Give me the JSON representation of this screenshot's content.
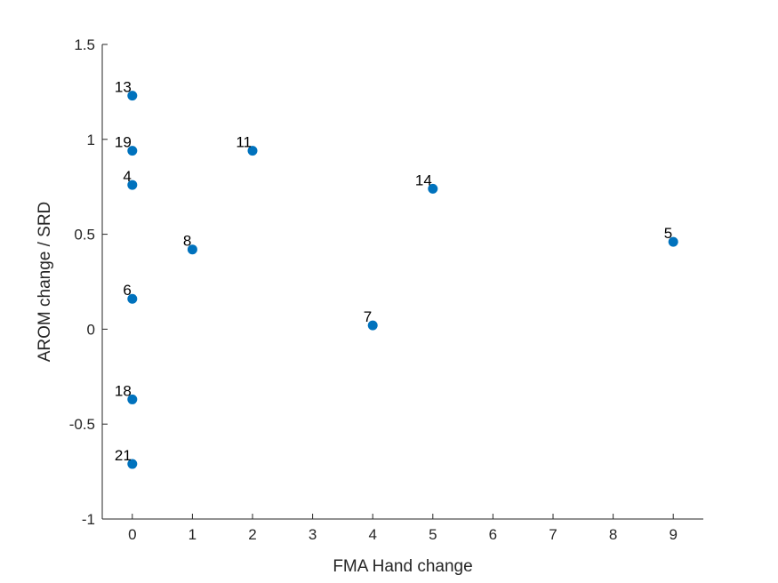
{
  "chart_data": {
    "type": "scatter",
    "title": "",
    "xlabel": "FMA Hand change",
    "ylabel": "AROM change / SRD",
    "xlim": [
      -0.5,
      9.5
    ],
    "ylim": [
      -1,
      1.5
    ],
    "x_ticks": [
      {
        "value": 0,
        "label": "0"
      },
      {
        "value": 1,
        "label": "1"
      },
      {
        "value": 2,
        "label": "2"
      },
      {
        "value": 3,
        "label": "3"
      },
      {
        "value": 4,
        "label": "4"
      },
      {
        "value": 5,
        "label": "5"
      },
      {
        "value": 6,
        "label": "6"
      },
      {
        "value": 7,
        "label": "7"
      },
      {
        "value": 8,
        "label": "8"
      },
      {
        "value": 9,
        "label": "9"
      }
    ],
    "y_ticks": [
      {
        "value": -1,
        "label": "-1"
      },
      {
        "value": -0.5,
        "label": "-0.5"
      },
      {
        "value": 0,
        "label": "0"
      },
      {
        "value": 0.5,
        "label": "0.5"
      },
      {
        "value": 1,
        "label": "1"
      },
      {
        "value": 1.5,
        "label": "1.5"
      }
    ],
    "grid": false,
    "marker_color": "#0072BD",
    "points": [
      {
        "label": "13",
        "x": 0,
        "y": 1.23
      },
      {
        "label": "19",
        "x": 0,
        "y": 0.94
      },
      {
        "label": "4",
        "x": 0,
        "y": 0.76
      },
      {
        "label": "6",
        "x": 0,
        "y": 0.16
      },
      {
        "label": "18",
        "x": 0,
        "y": -0.37
      },
      {
        "label": "21",
        "x": 0,
        "y": -0.71
      },
      {
        "label": "8",
        "x": 1,
        "y": 0.42
      },
      {
        "label": "11",
        "x": 2,
        "y": 0.94
      },
      {
        "label": "7",
        "x": 4,
        "y": 0.02
      },
      {
        "label": "14",
        "x": 5,
        "y": 0.74
      },
      {
        "label": "5",
        "x": 9,
        "y": 0.46
      }
    ]
  }
}
